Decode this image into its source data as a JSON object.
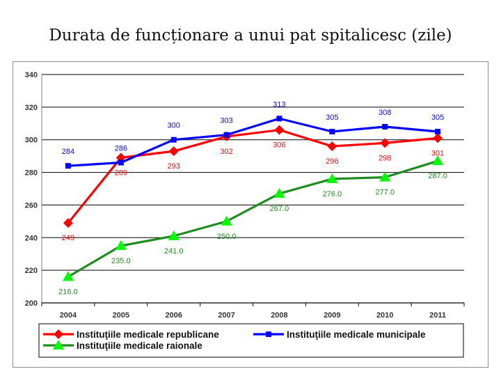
{
  "title": "Durata de funcționare a unui pat spitalicesc (zile)",
  "chart_data": {
    "type": "line",
    "categories": [
      "2004",
      "2005",
      "2006",
      "2007",
      "2008",
      "2009",
      "2010",
      "2011"
    ],
    "ylim": [
      200,
      340
    ],
    "yticks": [
      200,
      220,
      240,
      260,
      280,
      300,
      320,
      340
    ],
    "grid": true,
    "legend_position": "bottom",
    "series": [
      {
        "name": "Instituţiile medicale republicane",
        "color": "#ff0000",
        "marker": "diamond",
        "label_position": "below",
        "values": [
          249,
          289,
          293,
          302,
          306,
          296,
          298,
          301
        ],
        "labels": [
          "249",
          "289",
          "293",
          "302",
          "306",
          "296",
          "298",
          "301"
        ]
      },
      {
        "name": "Instituţiile medicale municipale",
        "color": "#0000ff",
        "marker": "square",
        "label_position": "above",
        "values": [
          284,
          286,
          300,
          303,
          313,
          305,
          308,
          305
        ],
        "labels": [
          "284",
          "286",
          "300",
          "303",
          "313",
          "305",
          "308",
          "305"
        ]
      },
      {
        "name": "Instituţiile medicale raionale",
        "color": "#1e8c1e",
        "marker_color": "#00ff00",
        "marker": "triangle",
        "label_position": "below",
        "values": [
          216,
          235,
          241,
          250,
          267,
          276,
          277,
          287
        ],
        "labels": [
          "216.0",
          "235.0",
          "241.0",
          "250.0",
          "267.0",
          "276.0",
          "277.0",
          "287.0"
        ]
      }
    ]
  }
}
